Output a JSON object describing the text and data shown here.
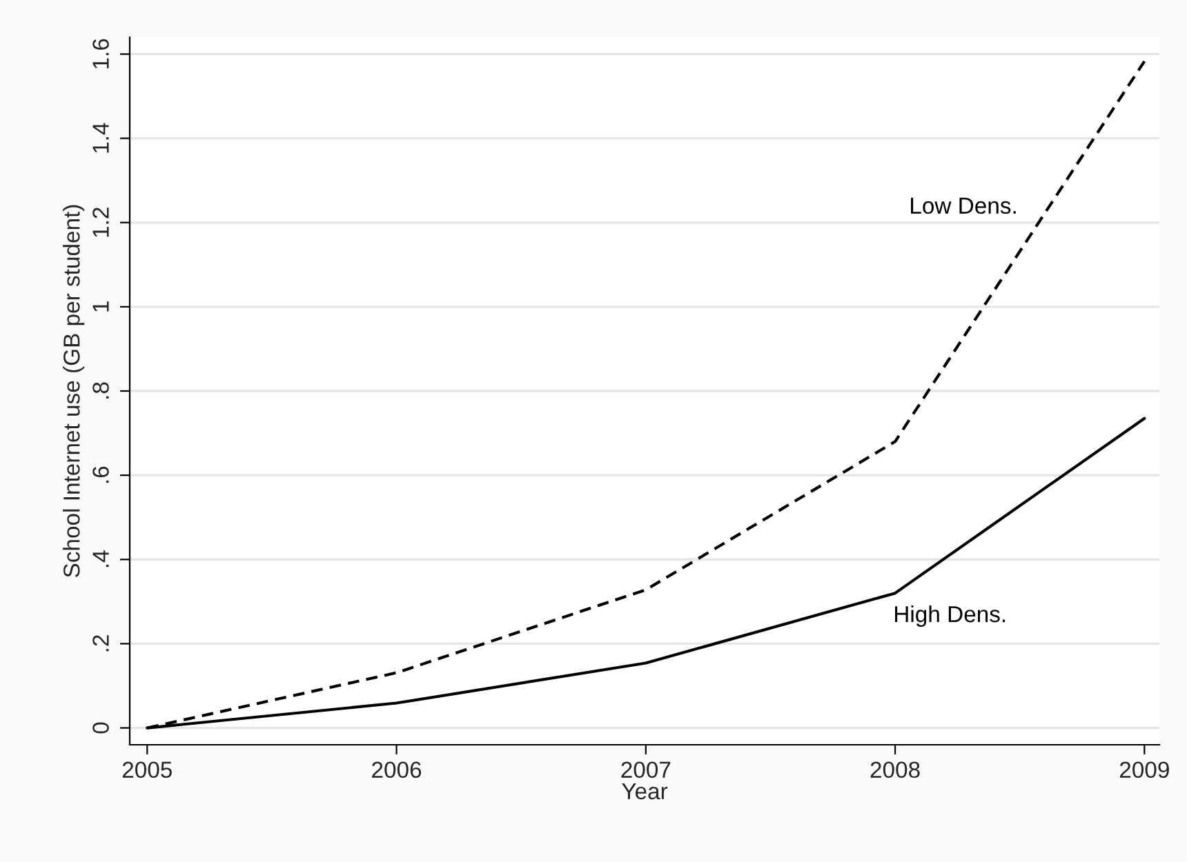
{
  "chart_data": {
    "type": "line",
    "xlabel": "Year",
    "ylabel": "School Internet use (GB per student)",
    "x": [
      2005,
      2006,
      2007,
      2008,
      2009
    ],
    "series": [
      {
        "name": "Low Dens.",
        "color": "#000000",
        "line_style": "dashed",
        "values": [
          0,
          0.131,
          0.328,
          0.68,
          1.583
        ]
      },
      {
        "name": "High Dens.",
        "color": "#000000",
        "line_style": "solid",
        "values": [
          0,
          0.059,
          0.154,
          0.32,
          0.735
        ]
      }
    ],
    "xlim": [
      2004.93,
      2009.06
    ],
    "ylim": [
      -0.04,
      1.64
    ],
    "xticks": [
      2005,
      2006,
      2007,
      2008,
      2009
    ],
    "yticks": [
      {
        "value": 0,
        "label": "0"
      },
      {
        "value": 0.2,
        "label": ".2"
      },
      {
        "value": 0.4,
        "label": ".4"
      },
      {
        "value": 0.6,
        "label": ".6"
      },
      {
        "value": 0.8,
        "label": ".8"
      },
      {
        "value": 1,
        "label": "1"
      },
      {
        "value": 1.2,
        "label": "1.2"
      },
      {
        "value": 1.4,
        "label": "1.4"
      },
      {
        "value": 1.6,
        "label": "1.6"
      }
    ],
    "grid": "y",
    "legend": false,
    "marker": "none"
  }
}
